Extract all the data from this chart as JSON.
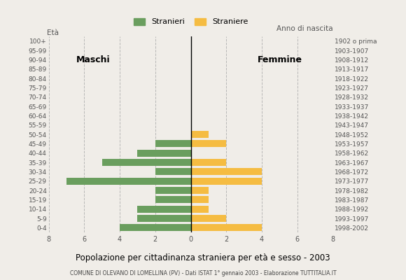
{
  "age_groups": [
    "0-4",
    "5-9",
    "10-14",
    "15-19",
    "20-24",
    "25-29",
    "30-34",
    "35-39",
    "40-44",
    "45-49",
    "50-54",
    "55-59",
    "60-64",
    "65-69",
    "70-74",
    "75-79",
    "80-84",
    "85-89",
    "90-94",
    "95-99",
    "100+"
  ],
  "birth_years": [
    "1998-2002",
    "1993-1997",
    "1988-1992",
    "1983-1987",
    "1978-1982",
    "1973-1977",
    "1968-1972",
    "1963-1967",
    "1958-1962",
    "1953-1957",
    "1948-1952",
    "1943-1947",
    "1938-1942",
    "1933-1937",
    "1928-1932",
    "1923-1927",
    "1918-1922",
    "1913-1917",
    "1908-1912",
    "1903-1907",
    "1902 o prima"
  ],
  "males": [
    4,
    3,
    3,
    2,
    2,
    7,
    2,
    5,
    3,
    2,
    0,
    0,
    0,
    0,
    0,
    0,
    0,
    0,
    0,
    0,
    0
  ],
  "females": [
    4,
    2,
    1,
    1,
    1,
    4,
    4,
    2,
    0,
    2,
    1,
    0,
    0,
    0,
    0,
    0,
    0,
    0,
    0,
    0,
    0
  ],
  "male_color": "#6a9e5e",
  "female_color": "#f5bc42",
  "background_color": "#f0ede8",
  "grid_color": "#aaaaaa",
  "title": "Popolazione per cittadinanza straniera per età e sesso - 2003",
  "subtitle": "COMUNE DI OLEVANO DI LOMELLINA (PV) - Dati ISTAT 1° gennaio 2003 - Elaborazione TUTTITALIA.IT",
  "xlabel_left": "Maschi",
  "xlabel_right": "Femmine",
  "age_label": "Età",
  "birth_label": "Anno di nascita",
  "legend_male": "Stranieri",
  "legend_female": "Straniere",
  "xlim": 8,
  "bar_height": 0.75
}
